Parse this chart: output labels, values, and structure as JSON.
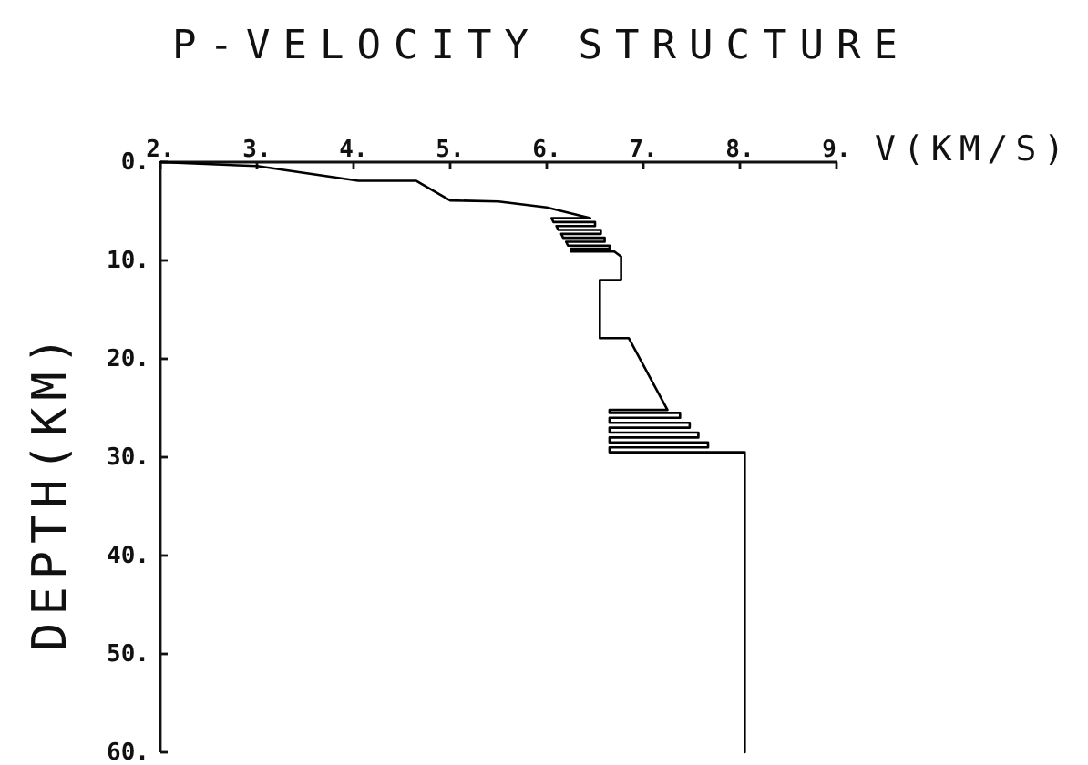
{
  "chart_data": {
    "type": "line",
    "title": "P-VELOCITY STRUCTURE",
    "xlabel": "V(KM/S)",
    "ylabel": "DEPTH(KM)",
    "series": [
      {
        "color": "#000000",
        "x": [
          2.0,
          3.0,
          4.05,
          4.65,
          5.0,
          5.5,
          6.0,
          6.45,
          6.05,
          6.07,
          6.5,
          6.5,
          6.1,
          6.12,
          6.56,
          6.56,
          6.15,
          6.17,
          6.6,
          6.6,
          6.2,
          6.22,
          6.65,
          6.65,
          6.25,
          6.25,
          6.7,
          6.77,
          6.77,
          6.55,
          6.55,
          6.85,
          7.25,
          6.65,
          6.65,
          7.38,
          7.38,
          6.65,
          6.65,
          7.48,
          7.48,
          6.65,
          6.65,
          7.57,
          7.57,
          6.65,
          6.65,
          7.67,
          7.67,
          6.65,
          6.65,
          8.05,
          8.05
        ],
        "values": [
          0,
          0.4,
          1.9,
          1.9,
          3.9,
          4.0,
          4.6,
          5.7,
          5.7,
          6.1,
          6.1,
          6.5,
          6.5,
          6.9,
          6.9,
          7.3,
          7.3,
          7.7,
          7.7,
          8.1,
          8.1,
          8.5,
          8.5,
          8.8,
          8.8,
          9.1,
          9.1,
          9.6,
          12.0,
          12.0,
          17.9,
          17.9,
          25.2,
          25.2,
          25.5,
          25.5,
          26.0,
          26.0,
          26.5,
          26.5,
          27.0,
          27.0,
          27.5,
          27.5,
          28.0,
          28.0,
          28.5,
          28.5,
          29.0,
          29.0,
          29.5,
          29.5,
          60
        ]
      }
    ],
    "xlim": [
      2,
      9
    ],
    "xticks": [
      {
        "value": 2,
        "label": "2."
      },
      {
        "value": 3,
        "label": "3."
      },
      {
        "value": 4,
        "label": "4."
      },
      {
        "value": 5,
        "label": "5."
      },
      {
        "value": 6,
        "label": "6."
      },
      {
        "value": 7,
        "label": "7."
      },
      {
        "value": 8,
        "label": "8."
      },
      {
        "value": 9,
        "label": "9."
      }
    ],
    "ylim": [
      60,
      0
    ],
    "yticks": [
      {
        "value": 0,
        "label": "0."
      },
      {
        "value": 10,
        "label": "10."
      },
      {
        "value": 20,
        "label": "20."
      },
      {
        "value": 30,
        "label": "30."
      },
      {
        "value": 40,
        "label": "40."
      },
      {
        "value": 50,
        "label": "50."
      },
      {
        "value": 60,
        "label": "60."
      }
    ]
  }
}
